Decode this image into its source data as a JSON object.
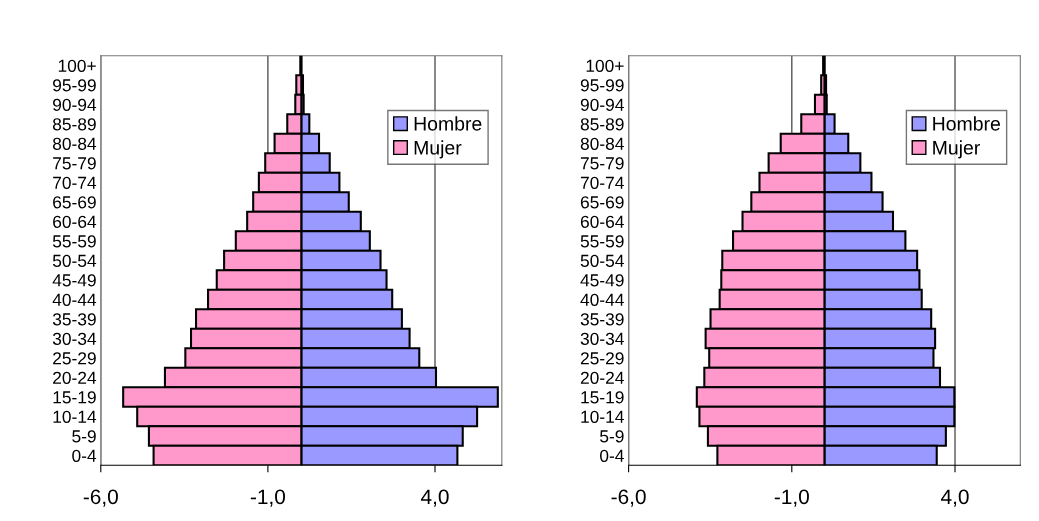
{
  "chart_data": [
    {
      "type": "bar",
      "orientation": "horizontal",
      "categories": [
        "100+",
        "95-99",
        "90-94",
        "85-89",
        "80-84",
        "75-79",
        "70-74",
        "65-69",
        "60-64",
        "55-59",
        "50-54",
        "45-49",
        "40-44",
        "35-39",
        "30-34",
        "25-29",
        "20-24",
        "15-19",
        "10-14",
        "5-9",
        "0-4"
      ],
      "series": [
        {
          "name": "Hombre",
          "color": "#9999ff",
          "values": [
            null,
            0.05,
            0.07,
            0.24,
            0.53,
            0.85,
            1.14,
            1.42,
            1.78,
            2.05,
            2.37,
            2.55,
            2.72,
            3.01,
            3.24,
            3.53,
            4.03,
            5.88,
            5.26,
            4.83,
            4.67
          ]
        },
        {
          "name": "Mujer",
          "color": "#ff99cc",
          "values": [
            -0.03,
            -0.15,
            -0.18,
            -0.42,
            -0.8,
            -1.08,
            -1.27,
            -1.44,
            -1.62,
            -1.96,
            -2.31,
            -2.53,
            -2.79,
            -3.15,
            -3.3,
            -3.47,
            -4.08,
            -5.33,
            -4.91,
            -4.56,
            -4.42
          ]
        }
      ],
      "xlim": [
        -6,
        6
      ],
      "xticks": [
        {
          "value": -6,
          "label": "-6,0"
        },
        {
          "value": -1,
          "label": "-1,0"
        },
        {
          "value": 4,
          "label": "4,0"
        }
      ],
      "grid": "x",
      "legend": "top right",
      "stacked": true
    },
    {
      "type": "bar",
      "orientation": "horizontal",
      "categories": [
        "100+",
        "95-99",
        "90-94",
        "85-89",
        "80-84",
        "75-79",
        "70-74",
        "65-69",
        "60-64",
        "55-59",
        "50-54",
        "45-49",
        "40-44",
        "35-39",
        "30-34",
        "25-29",
        "20-24",
        "15-19",
        "10-14",
        "5-9",
        "0-4"
      ],
      "series": [
        {
          "name": "Hombre",
          "color": "#9999ff",
          "values": [
            null,
            0.05,
            0.07,
            0.31,
            0.73,
            1.1,
            1.44,
            1.78,
            2.1,
            2.48,
            2.84,
            2.91,
            2.98,
            3.27,
            3.39,
            3.34,
            3.54,
            3.98,
            3.98,
            3.72,
            3.44
          ]
        },
        {
          "name": "Mujer",
          "color": "#ff99cc",
          "values": [
            -0.04,
            -0.1,
            -0.29,
            -0.71,
            -1.34,
            -1.71,
            -1.99,
            -2.24,
            -2.51,
            -2.8,
            -3.13,
            -3.16,
            -3.21,
            -3.49,
            -3.64,
            -3.53,
            -3.68,
            -3.91,
            -3.83,
            -3.57,
            -3.28
          ]
        }
      ],
      "xlim": [
        -6,
        6
      ],
      "xticks": [
        {
          "value": -6,
          "label": "-6,0"
        },
        {
          "value": -1,
          "label": "-1,0"
        },
        {
          "value": 4,
          "label": "4,0"
        }
      ],
      "grid": "x",
      "legend": "top right",
      "stacked": true
    }
  ]
}
